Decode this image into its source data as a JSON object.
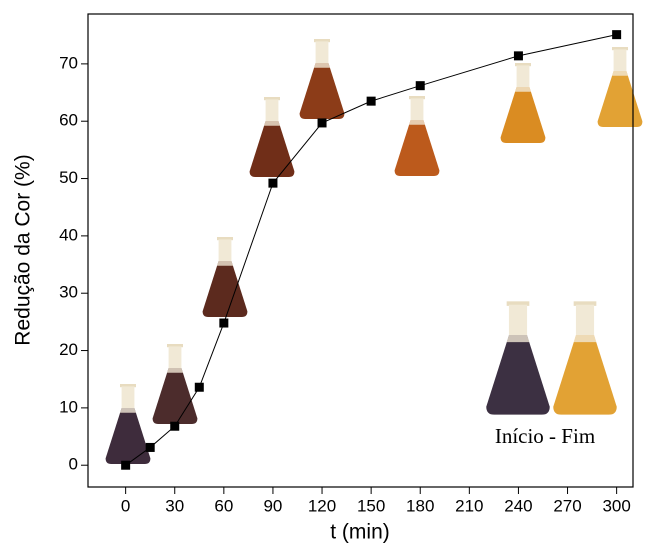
{
  "chart_data": {
    "type": "line",
    "x_label": "t (min)",
    "y_label": "Redução da Cor (%)",
    "annotation": "Início - Fim",
    "series": [
      {
        "color": "#000000",
        "x": [
          0,
          15,
          30,
          45,
          60,
          90,
          120,
          150,
          180,
          240,
          300
        ],
        "values": [
          0,
          3.1,
          6.8,
          13.6,
          24.8,
          49.2,
          59.7,
          63.5,
          66.2,
          71.4,
          75.1
        ]
      }
    ],
    "xlim": [
      -23,
      310
    ],
    "ylim": [
      -3.8,
      78.7
    ],
    "xticks": [
      0,
      30,
      60,
      90,
      120,
      150,
      180,
      210,
      240,
      270,
      300
    ],
    "yticks": [
      0,
      10,
      20,
      30,
      40,
      50,
      60,
      70
    ]
  }
}
